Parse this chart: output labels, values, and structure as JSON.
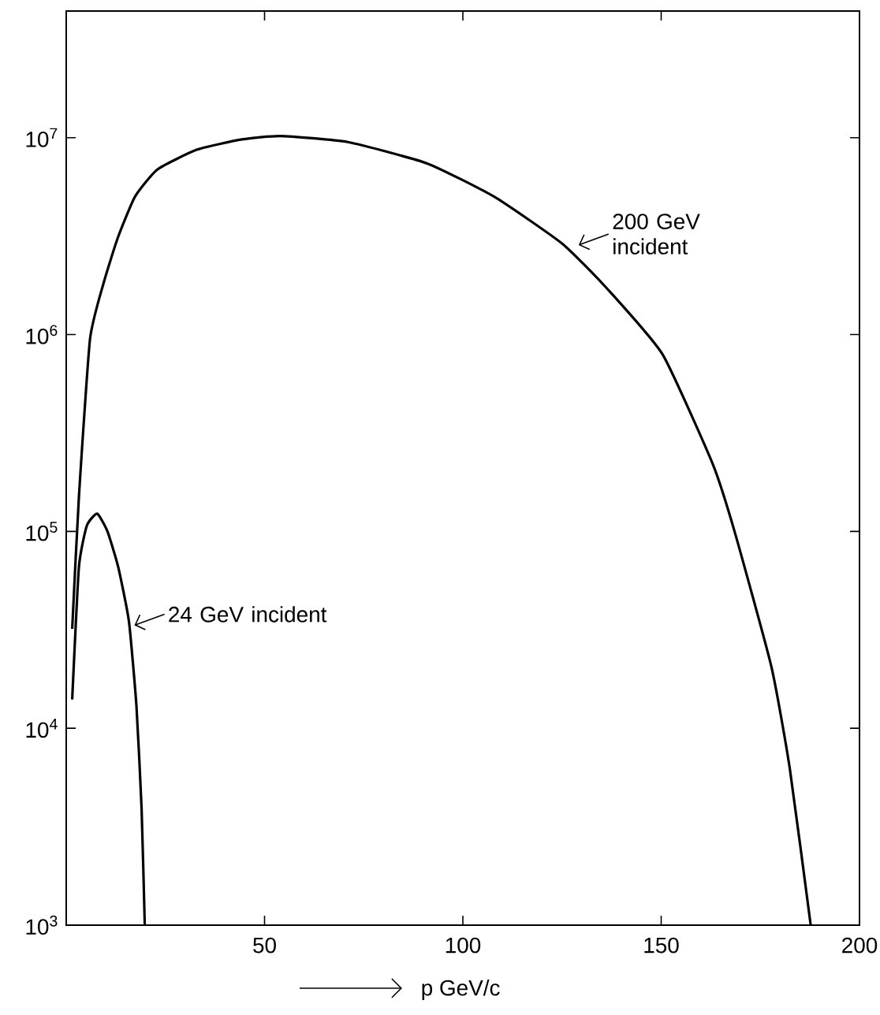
{
  "chart_data": {
    "type": "line",
    "xlabel": "p  GeV/c",
    "log": "y",
    "xlim": [
      0,
      200
    ],
    "ylim": [
      1000,
      44000000
    ],
    "xticks": [
      50,
      100,
      150,
      200
    ],
    "yticks": [
      {
        "value": 1000,
        "label": "10$^{3}$"
      },
      {
        "value": 10000,
        "label": "10$^{4}$"
      },
      {
        "value": 100000,
        "label": "10$^{5}$"
      },
      {
        "value": 1000000,
        "label": "10$^{6}$"
      },
      {
        "value": 10000000,
        "label": "10$^{7}$"
      }
    ],
    "grid": false,
    "marker": "none",
    "line_style": "solid",
    "series": [
      {
        "color": "#000000",
        "x": [
          1.5,
          3.2,
          6,
          9.5,
          13,
          17.3,
          23,
          33,
          44.3,
          54,
          71,
          91,
          108,
          125,
          136.5,
          150.4,
          163,
          168.5,
          177.8,
          182.4,
          187.7
        ],
        "values": [
          32000,
          150000,
          950000,
          1850000,
          3100000,
          5000000,
          6900000,
          8700000,
          9800000,
          10200000,
          9500000,
          7400000,
          5000000,
          2900000,
          1700000,
          790000,
          220000,
          100000,
          20500,
          6300,
          1000
        ]
      },
      {
        "color": "#000000",
        "x": [
          1.5,
          3.2,
          5.2,
          7.8,
          10.4,
          13.1,
          15.8,
          17.7,
          19,
          19.8
        ],
        "values": [
          14000,
          66000,
          107000,
          123000,
          100000,
          66000,
          35000,
          13000,
          3900,
          1000
        ]
      }
    ],
    "annotations": [
      {
        "text": "200 GeV incident",
        "x": 128,
        "y": 2900000
      },
      {
        "text": "24 GeV incident",
        "x": 16,
        "y": 34000
      }
    ]
  }
}
